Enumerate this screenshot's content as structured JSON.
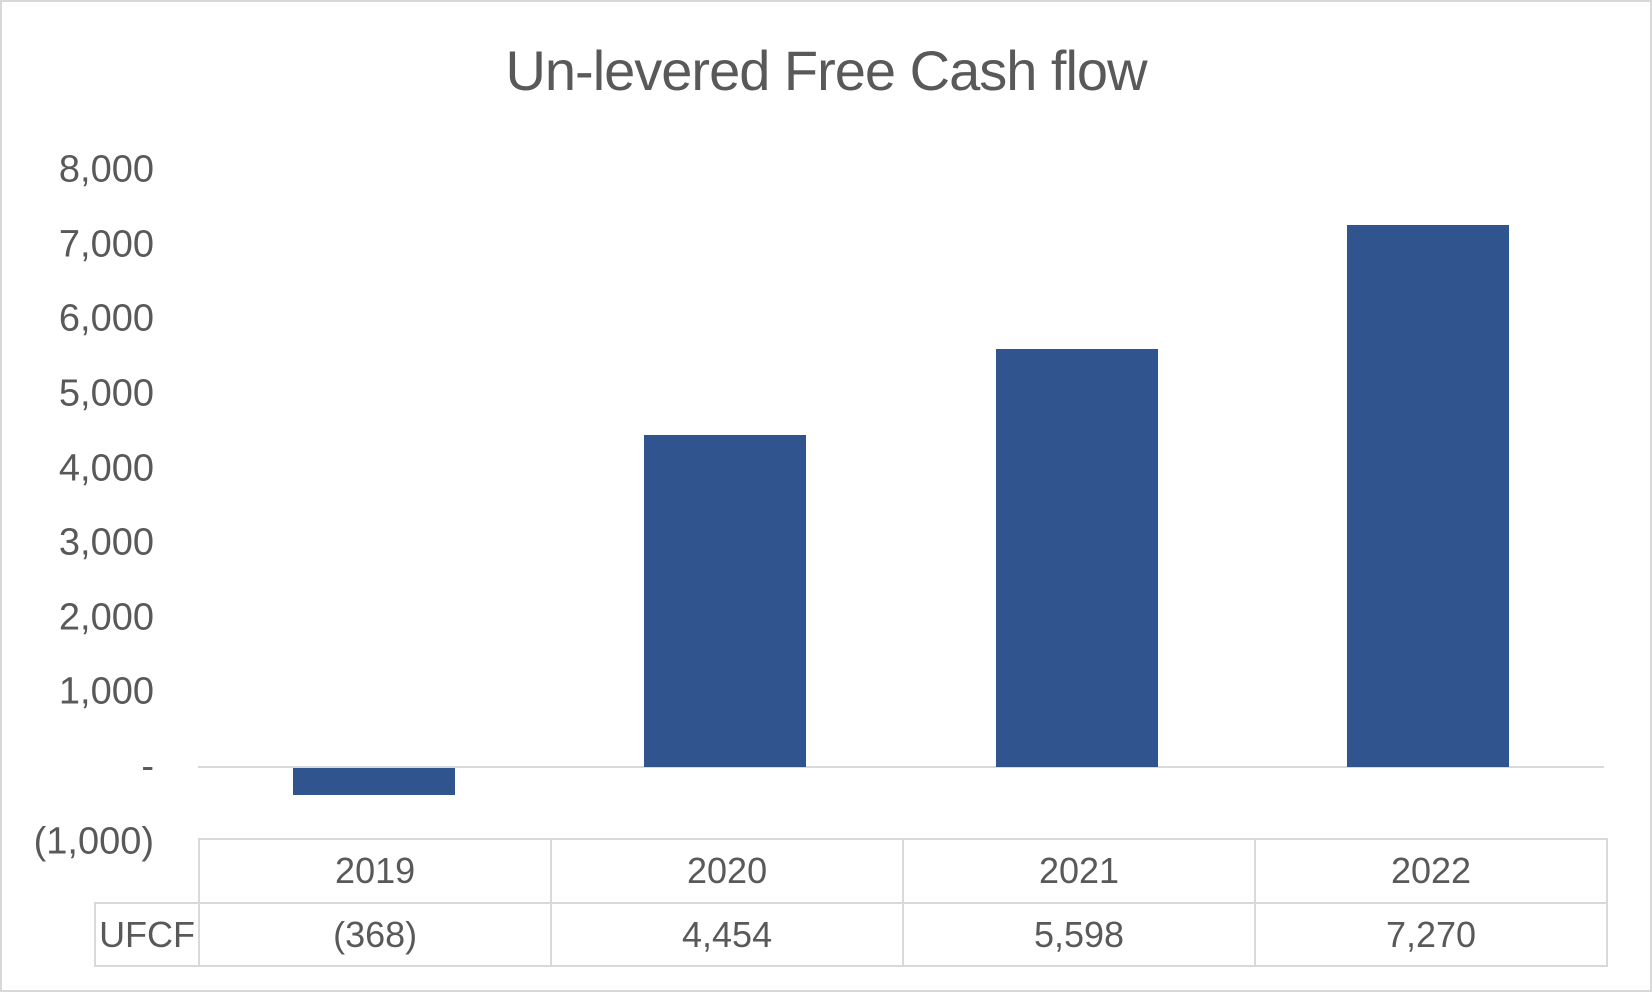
{
  "window": {
    "background": "#FFFFFF",
    "frame_border_color": "#D8D8D8"
  },
  "colors": {
    "bar": "#2F548E",
    "text": "#595959",
    "grid": "#D9D9D9"
  },
  "chart_data": {
    "type": "bar",
    "title": "Un-levered Free Cash flow",
    "categories": [
      "2019",
      "2020",
      "2021",
      "2022"
    ],
    "series": [
      {
        "name": "UFCF",
        "values": [
          -368,
          4454,
          5598,
          7270
        ],
        "labels": [
          "(368)",
          "4,454",
          "5,598",
          "7,270"
        ]
      }
    ],
    "xlabel": "",
    "ylabel": "",
    "ylim": [
      -1000,
      8000
    ],
    "ytick_step": 1000,
    "ytick_labels": [
      "(1,000)",
      "-",
      "1,000",
      "2,000",
      "3,000",
      "4,000",
      "5,000",
      "6,000",
      "7,000",
      "8,000"
    ],
    "gridlines": false,
    "legend": "none",
    "data_table_shown": true,
    "bar_color": "#2F548E"
  }
}
